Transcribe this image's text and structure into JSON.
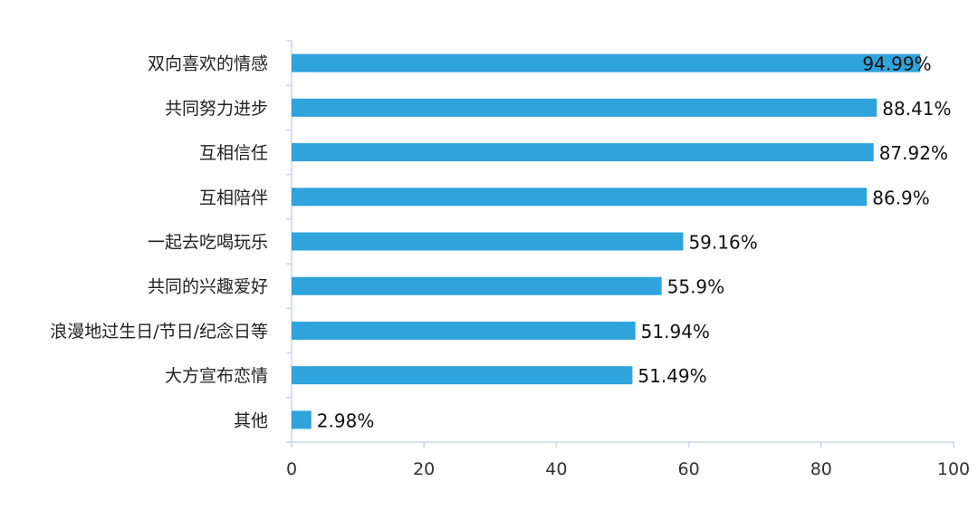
{
  "chart_data": {
    "type": "bar",
    "orientation": "horizontal",
    "categories": [
      "双向喜欢的情感",
      "共同努力进步",
      "互相信任",
      "互相陪伴",
      "一起去吃喝玩乐",
      "共同的兴趣爱好",
      "浪漫地过生日/节日/纪念日等",
      "大方宣布恋情",
      "其他"
    ],
    "values": [
      94.99,
      88.41,
      87.92,
      86.9,
      59.16,
      55.9,
      51.94,
      51.49,
      2.98
    ],
    "value_labels": [
      "94.99%",
      "88.41%",
      "87.92%",
      "86.9%",
      "59.16%",
      "55.9%",
      "51.94%",
      "51.49%",
      "2.98%"
    ],
    "xlim": [
      0,
      100
    ],
    "xticks": [
      0,
      20,
      40,
      60,
      80,
      100
    ],
    "xtick_labels": [
      "0",
      "20",
      "40",
      "60",
      "80",
      "100"
    ],
    "title": "",
    "xlabel": "",
    "ylabel": "",
    "grid": false,
    "legend": "none",
    "bar_color": "#2fa3dc",
    "axis_color": "#c8d6e6"
  }
}
